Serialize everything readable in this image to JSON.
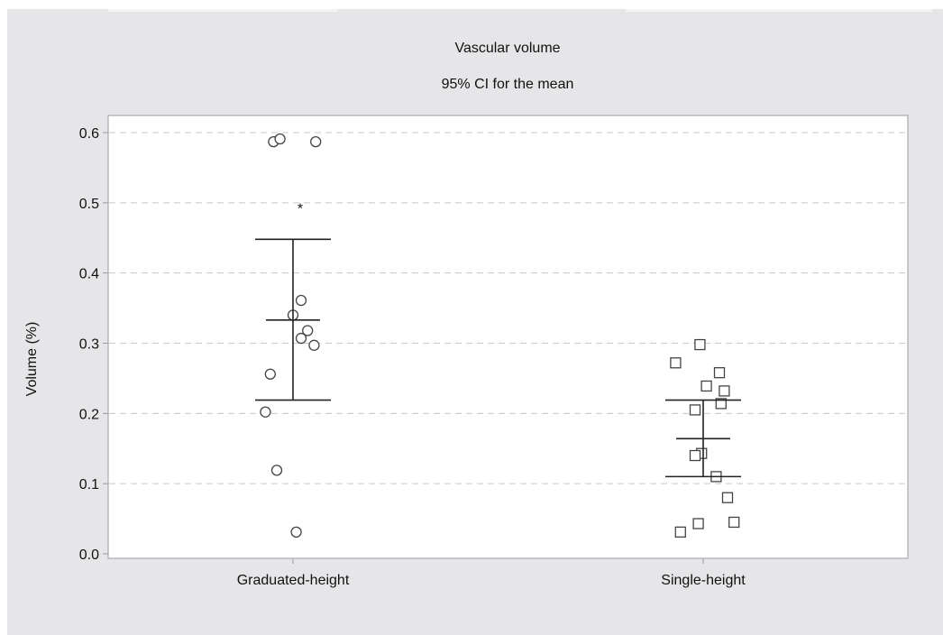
{
  "chart_data": {
    "type": "scatter",
    "title": "Vascular volume",
    "subtitle": "95% CI for the mean",
    "xlabel": "",
    "ylabel": "Volume (%)",
    "categories": [
      "Graduated-height",
      "Single-height"
    ],
    "ylim": [
      0.0,
      0.6
    ],
    "yticks": [
      "0.0",
      "0.1",
      "0.2",
      "0.3",
      "0.4",
      "0.5",
      "0.6"
    ],
    "grid": "horizontal dashed",
    "series": [
      {
        "category": "Graduated-height",
        "marker": "circle",
        "points": [
          {
            "jitter": -0.12,
            "y": 0.587
          },
          {
            "jitter": -0.08,
            "y": 0.591
          },
          {
            "jitter": 0.14,
            "y": 0.587
          },
          {
            "jitter": 0.05,
            "y": 0.361
          },
          {
            "jitter": 0.0,
            "y": 0.34
          },
          {
            "jitter": 0.09,
            "y": 0.318
          },
          {
            "jitter": 0.05,
            "y": 0.307
          },
          {
            "jitter": 0.13,
            "y": 0.297
          },
          {
            "jitter": -0.14,
            "y": 0.256
          },
          {
            "jitter": -0.17,
            "y": 0.202
          },
          {
            "jitter": -0.1,
            "y": 0.119
          },
          {
            "jitter": 0.02,
            "y": 0.031
          }
        ],
        "mean": 0.333,
        "ci": [
          0.219,
          0.448
        ],
        "outlier_marker": {
          "symbol": "*",
          "y": 0.495
        }
      },
      {
        "category": "Single-height",
        "marker": "square",
        "points": [
          {
            "jitter": -0.02,
            "y": 0.298
          },
          {
            "jitter": -0.17,
            "y": 0.272
          },
          {
            "jitter": 0.1,
            "y": 0.258
          },
          {
            "jitter": 0.02,
            "y": 0.239
          },
          {
            "jitter": 0.13,
            "y": 0.232
          },
          {
            "jitter": 0.11,
            "y": 0.214
          },
          {
            "jitter": -0.05,
            "y": 0.205
          },
          {
            "jitter": -0.01,
            "y": 0.143
          },
          {
            "jitter": -0.05,
            "y": 0.14
          },
          {
            "jitter": 0.08,
            "y": 0.11
          },
          {
            "jitter": 0.15,
            "y": 0.08
          },
          {
            "jitter": 0.19,
            "y": 0.045
          },
          {
            "jitter": -0.03,
            "y": 0.043
          },
          {
            "jitter": -0.14,
            "y": 0.031
          }
        ],
        "mean": 0.164,
        "ci": [
          0.11,
          0.219
        ]
      }
    ],
    "colors": {
      "background": "#e6e6e8",
      "plot_area": "#ffffff",
      "frame": "#9a9aa3",
      "grid": "#c8c8c8",
      "marker": "#444444",
      "ci": "#222222"
    }
  }
}
